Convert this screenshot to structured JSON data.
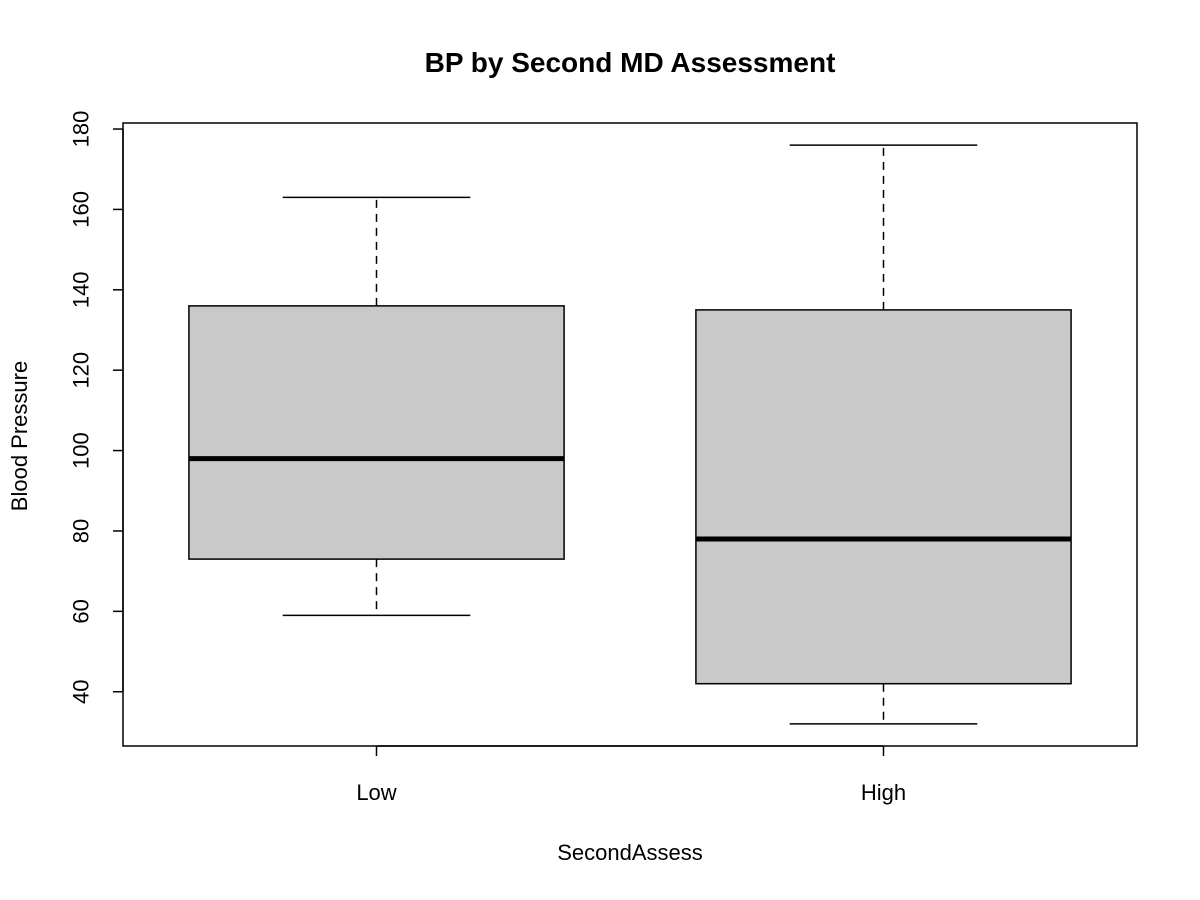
{
  "chart_data": {
    "type": "box",
    "title": "BP by Second MD Assessment",
    "xlabel": "SecondAssess",
    "ylabel": "Blood Pressure",
    "categories": [
      "Low",
      "High"
    ],
    "ylim": [
      26.5,
      181.5
    ],
    "yticks": [
      40,
      60,
      80,
      100,
      120,
      140,
      160,
      180
    ],
    "grid": false,
    "legend": "none",
    "boxes": [
      {
        "category": "Low",
        "whisker_low": 59,
        "q1": 73,
        "median": 98,
        "q3": 136,
        "whisker_high": 163
      },
      {
        "category": "High",
        "whisker_low": 32,
        "q1": 42,
        "median": 78,
        "q3": 135,
        "whisker_high": 176
      }
    ],
    "colors": {
      "box_fill": "#c9c9c9",
      "line": "#000000",
      "background": "#ffffff"
    }
  }
}
